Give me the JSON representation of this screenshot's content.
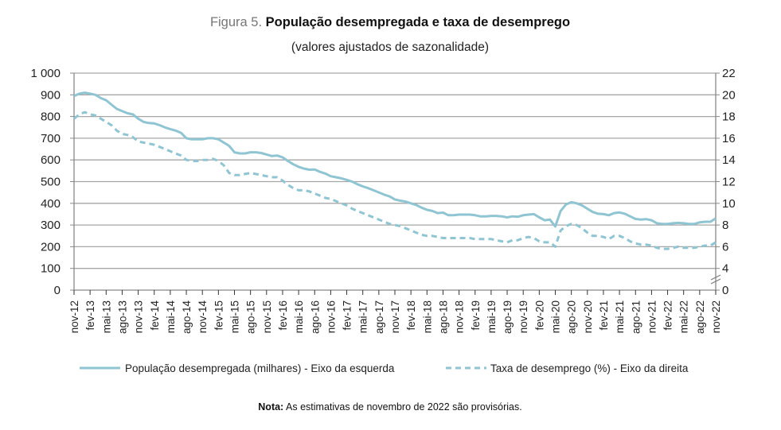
{
  "chart_data": {
    "type": "line",
    "title_prefix": "Figura 5.",
    "title": "População desempregada e taxa de desemprego",
    "subtitle": "(valores ajustados de sazonalidade)",
    "note_label": "Nota:",
    "note": "As estimativas de novembro de 2022 são provisórias.",
    "color": "#8fc5d2",
    "grid": true,
    "legend_placement": "bottom",
    "x_range": [
      "nov-12",
      "nov-22"
    ],
    "x_tick_labels": [
      "nov-12",
      "fev-13",
      "mai-13",
      "ago-13",
      "nov-13",
      "fev-14",
      "mai-14",
      "ago-14",
      "nov-14",
      "fev-15",
      "mai-15",
      "ago-15",
      "nov-15",
      "fev-16",
      "mai-16",
      "ago-16",
      "nov-16",
      "fev-17",
      "mai-17",
      "ago-17",
      "nov-17",
      "fev-18",
      "mai-18",
      "ago-18",
      "nov-18",
      "fev-19",
      "mai-19",
      "ago-19",
      "nov-19",
      "fev-20",
      "mai-20",
      "ago-20",
      "nov-20",
      "fev-21",
      "mai-21",
      "ago-21",
      "nov-21",
      "fev-22",
      "mai-22",
      "ago-22",
      "nov-22"
    ],
    "y_left": {
      "ylim": [
        0,
        1000
      ],
      "tick_labels": [
        "0",
        "100",
        "200",
        "300",
        "400",
        "500",
        "600",
        "700",
        "800",
        "900",
        "1 000"
      ]
    },
    "y_right": {
      "ylim": [
        0,
        22
      ],
      "axis_break": true,
      "tick_labels": [
        "0",
        "4",
        "6",
        "8",
        "10",
        "12",
        "14",
        "16",
        "18",
        "20",
        "22"
      ]
    },
    "series": [
      {
        "name": "População desempregada (milhares) - Eixo da esquerda",
        "axis": "left",
        "style": "solid",
        "values": [
          895,
          905,
          910,
          905,
          900,
          885,
          875,
          855,
          835,
          825,
          815,
          810,
          790,
          775,
          770,
          768,
          760,
          750,
          742,
          735,
          725,
          700,
          695,
          695,
          695,
          700,
          700,
          695,
          680,
          665,
          635,
          630,
          630,
          635,
          635,
          632,
          625,
          618,
          620,
          612,
          595,
          580,
          568,
          560,
          555,
          556,
          545,
          537,
          525,
          520,
          515,
          508,
          500,
          488,
          478,
          470,
          460,
          450,
          440,
          432,
          418,
          412,
          408,
          400,
          392,
          380,
          370,
          365,
          355,
          357,
          345,
          345,
          348,
          348,
          348,
          345,
          340,
          340,
          342,
          342,
          340,
          335,
          340,
          338,
          345,
          348,
          350,
          335,
          322,
          325,
          293,
          365,
          395,
          405,
          400,
          390,
          375,
          360,
          352,
          350,
          345,
          355,
          358,
          352,
          340,
          328,
          325,
          327,
          322,
          308,
          305,
          305,
          308,
          310,
          308,
          305,
          305,
          312,
          315,
          315,
          330
        ]
      },
      {
        "name": "Taxa de desemprego (%) - Eixo da direita",
        "axis": "right",
        "style": "dashed",
        "values": [
          17.8,
          18.2,
          18.4,
          18.2,
          18.1,
          17.8,
          17.5,
          17.2,
          16.7,
          16.4,
          16.3,
          16.1,
          15.7,
          15.6,
          15.5,
          15.4,
          15.2,
          15.0,
          14.8,
          14.6,
          14.4,
          14.0,
          13.9,
          13.9,
          14.0,
          14.0,
          14.1,
          13.9,
          13.5,
          12.8,
          12.6,
          12.6,
          12.7,
          12.8,
          12.7,
          12.6,
          12.5,
          12.4,
          12.4,
          12.1,
          11.7,
          11.4,
          11.2,
          11.2,
          11.1,
          10.9,
          10.7,
          10.5,
          10.4,
          10.2,
          10.0,
          9.8,
          9.5,
          9.3,
          9.1,
          8.9,
          8.7,
          8.5,
          8.3,
          8.1,
          8.0,
          7.9,
          7.7,
          7.5,
          7.3,
          7.1,
          7.0,
          7.0,
          6.9,
          6.8,
          6.8,
          6.8,
          6.8,
          6.8,
          6.8,
          6.7,
          6.7,
          6.7,
          6.7,
          6.6,
          6.5,
          6.4,
          6.6,
          6.6,
          6.8,
          6.9,
          6.8,
          6.5,
          6.4,
          6.4,
          6.0,
          7.5,
          7.9,
          8.1,
          8.0,
          7.7,
          7.3,
          7.0,
          7.0,
          6.9,
          6.7,
          7.0,
          7.0,
          6.8,
          6.5,
          6.3,
          6.2,
          6.2,
          6.1,
          5.9,
          5.8,
          5.8,
          5.9,
          6.0,
          5.9,
          5.9,
          5.9,
          6.0,
          6.1,
          6.1,
          6.4
        ]
      }
    ]
  }
}
